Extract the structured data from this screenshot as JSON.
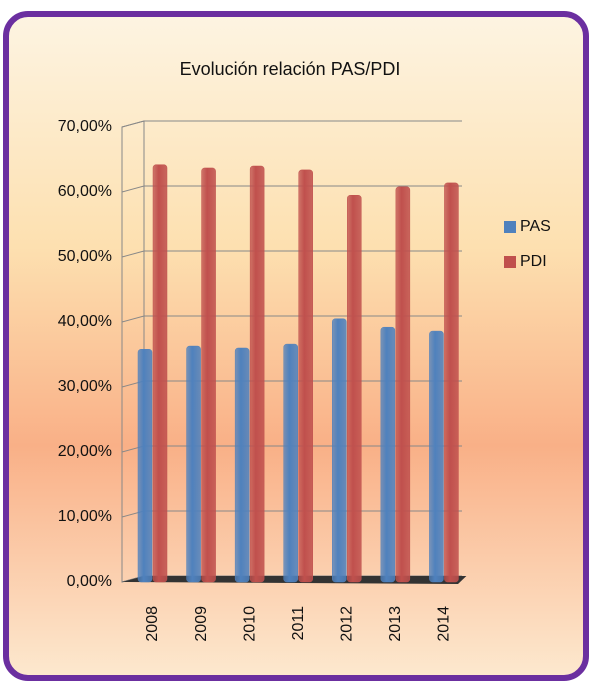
{
  "chart_data": {
    "type": "bar",
    "title": "Evolución relación PAS/PDI",
    "categories": [
      "2008",
      "2009",
      "2010",
      "2011",
      "2012",
      "2013",
      "2014"
    ],
    "series": [
      {
        "name": "PAS",
        "color": "#4f81bd",
        "values": [
          35.8,
          36.3,
          36.0,
          36.6,
          40.5,
          39.2,
          38.6
        ]
      },
      {
        "name": "PDI",
        "color": "#c0504d",
        "values": [
          64.2,
          63.7,
          64.0,
          63.4,
          59.5,
          60.8,
          61.4
        ]
      }
    ],
    "ylim": [
      0,
      70
    ],
    "yticks": [
      {
        "value": 0,
        "label": "0,00%"
      },
      {
        "value": 10,
        "label": "10,00%"
      },
      {
        "value": 20,
        "label": "20,00%"
      },
      {
        "value": 30,
        "label": "30,00%"
      },
      {
        "value": 40,
        "label": "40,00%"
      },
      {
        "value": 50,
        "label": "50,00%"
      },
      {
        "value": 60,
        "label": "60,00%"
      },
      {
        "value": 70,
        "label": "70,00%"
      }
    ],
    "grid": true,
    "legend": "right"
  }
}
